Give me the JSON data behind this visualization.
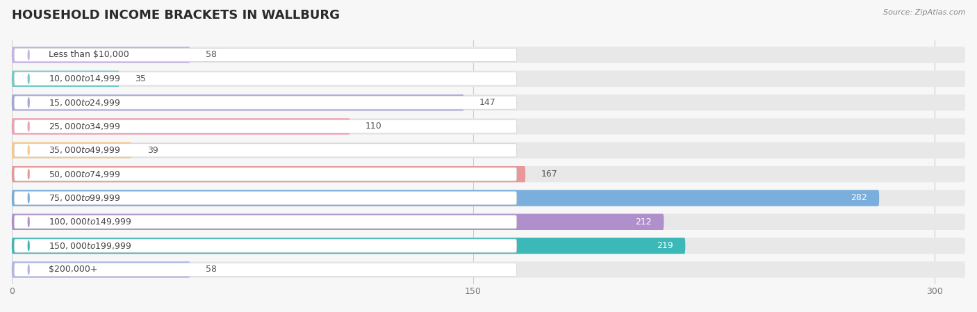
{
  "title": "HOUSEHOLD INCOME BRACKETS IN WALLBURG",
  "source": "Source: ZipAtlas.com",
  "categories": [
    "Less than $10,000",
    "$10,000 to $14,999",
    "$15,000 to $24,999",
    "$25,000 to $34,999",
    "$35,000 to $49,999",
    "$50,000 to $74,999",
    "$75,000 to $99,999",
    "$100,000 to $149,999",
    "$150,000 to $199,999",
    "$200,000+"
  ],
  "values": [
    58,
    35,
    147,
    110,
    39,
    167,
    282,
    212,
    219,
    58
  ],
  "bar_colors": [
    "#c5b3e6",
    "#72ccc6",
    "#a5a5d8",
    "#f29eb0",
    "#f5c98a",
    "#e89898",
    "#7aaedd",
    "#b090cc",
    "#3db8b8",
    "#b0b5e8"
  ],
  "bg_color": "#f7f7f7",
  "bar_bg_color": "#e8e8e8",
  "xlim": [
    0,
    310
  ],
  "xticks": [
    0,
    150,
    300
  ],
  "title_fontsize": 13,
  "label_fontsize": 9,
  "value_fontsize": 9
}
